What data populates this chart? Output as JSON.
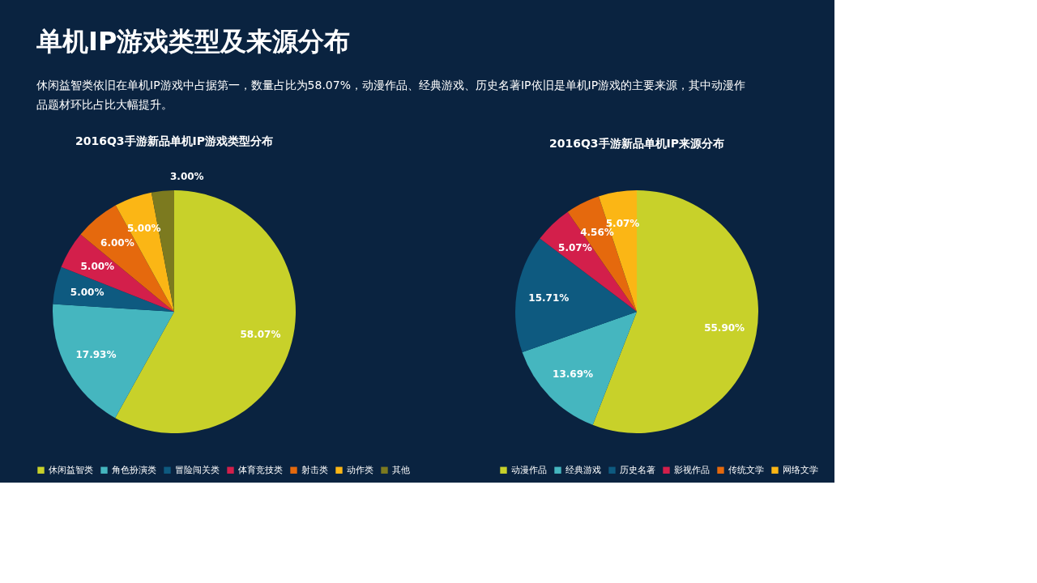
{
  "chart_data": [
    {
      "type": "other",
      "title": "单机IP游戏类型及来源分布",
      "subtitle": "休闲益智类依旧在单机IP游戏中占据第一，数量占比为58.07%，动漫作品、经典游戏、历史名著IP依旧是单机IP游戏的主要来源，其中动漫作品题材环比占比大幅提升。"
    },
    {
      "type": "pie",
      "title": "2016Q3手游新品单机IP游戏类型分布",
      "categories": [
        "休闲益智类",
        "角色扮演类",
        "冒险闯关类",
        "体育竞技类",
        "射击类",
        "动作类",
        "其他"
      ],
      "values": [
        58.07,
        17.93,
        5.0,
        5.0,
        6.0,
        5.0,
        3.0
      ],
      "value_labels": [
        "58.07%",
        "17.93%",
        "5.00%",
        "5.00%",
        "6.00%",
        "5.00%",
        "3.00%"
      ],
      "colors": [
        "#c8d12a",
        "#45b6bf",
        "#0e5a80",
        "#d31f4b",
        "#e5690d",
        "#fbb615",
        "#7c7a1f"
      ],
      "legend": "bottom"
    },
    {
      "type": "pie",
      "title": "2016Q3手游新品单机IP来源分布",
      "categories": [
        "动漫作品",
        "经典游戏",
        "历史名著",
        "影视作品",
        "传统文学",
        "网络文学"
      ],
      "values": [
        55.9,
        13.69,
        15.71,
        5.07,
        4.56,
        5.07
      ],
      "value_labels": [
        "55.90%",
        "13.69%",
        "15.71%",
        "5.07%",
        "4.56%",
        "5.07%"
      ],
      "colors": [
        "#c8d12a",
        "#45b6bf",
        "#0e5a80",
        "#d31f4b",
        "#e5690d",
        "#fbb615"
      ],
      "legend": "bottom"
    }
  ]
}
